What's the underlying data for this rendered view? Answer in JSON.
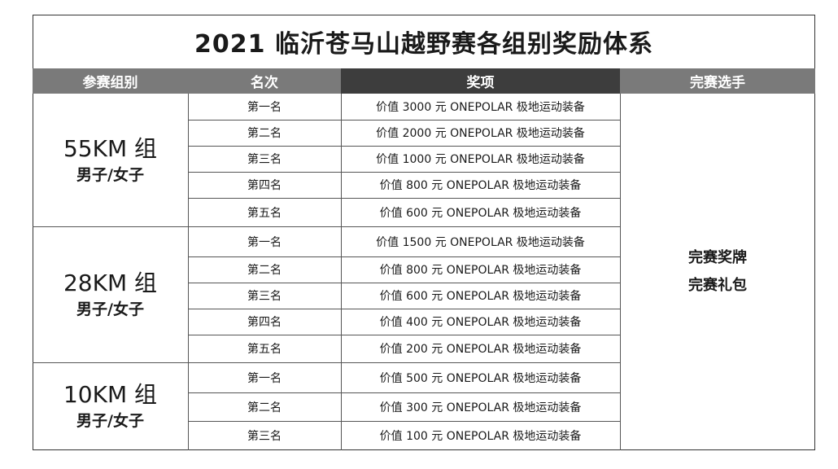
{
  "title": "2021 临沂苍马山越野赛各组别奖励体系",
  "headers": {
    "group": "参赛组别",
    "rank": "名次",
    "prize": "奖项",
    "finisher": "完赛选手"
  },
  "finisher_rewards": [
    "完赛奖牌",
    "完赛礼包"
  ],
  "groups": [
    {
      "name": "55KM 组",
      "sub": "男子/女子",
      "rows": [
        {
          "rank": "第一名",
          "prize": "价值 3000 元  ONEPOLAR 极地运动装备"
        },
        {
          "rank": "第二名",
          "prize": "价值 2000 元  ONEPOLAR 极地运动装备"
        },
        {
          "rank": "第三名",
          "prize": "价值 1000 元  ONEPOLAR 极地运动装备"
        },
        {
          "rank": "第四名",
          "prize": "价值 800 元  ONEPOLAR 极地运动装备"
        },
        {
          "rank": "第五名",
          "prize": "价值 600 元  ONEPOLAR 极地运动装备"
        }
      ]
    },
    {
      "name": "28KM 组",
      "sub": "男子/女子",
      "rows": [
        {
          "rank": "第一名",
          "prize": "价值 1500 元  ONEPOLAR 极地运动装备"
        },
        {
          "rank": "第二名",
          "prize": "价值 800 元  ONEPOLAR 极地运动装备"
        },
        {
          "rank": "第三名",
          "prize": "价值 600 元  ONEPOLAR 极地运动装备"
        },
        {
          "rank": "第四名",
          "prize": "价值 400 元  ONEPOLAR 极地运动装备"
        },
        {
          "rank": "第五名",
          "prize": "价值 200 元  ONEPOLAR 极地运动装备"
        }
      ]
    },
    {
      "name": "10KM 组",
      "sub": "男子/女子",
      "rows": [
        {
          "rank": "第一名",
          "prize": "价值 500 元  ONEPOLAR 极地运动装备"
        },
        {
          "rank": "第二名",
          "prize": "价值 300 元  ONEPOLAR 极地运动装备"
        },
        {
          "rank": "第三名",
          "prize": "价值 100 元  ONEPOLAR 极地运动装备"
        }
      ]
    }
  ]
}
